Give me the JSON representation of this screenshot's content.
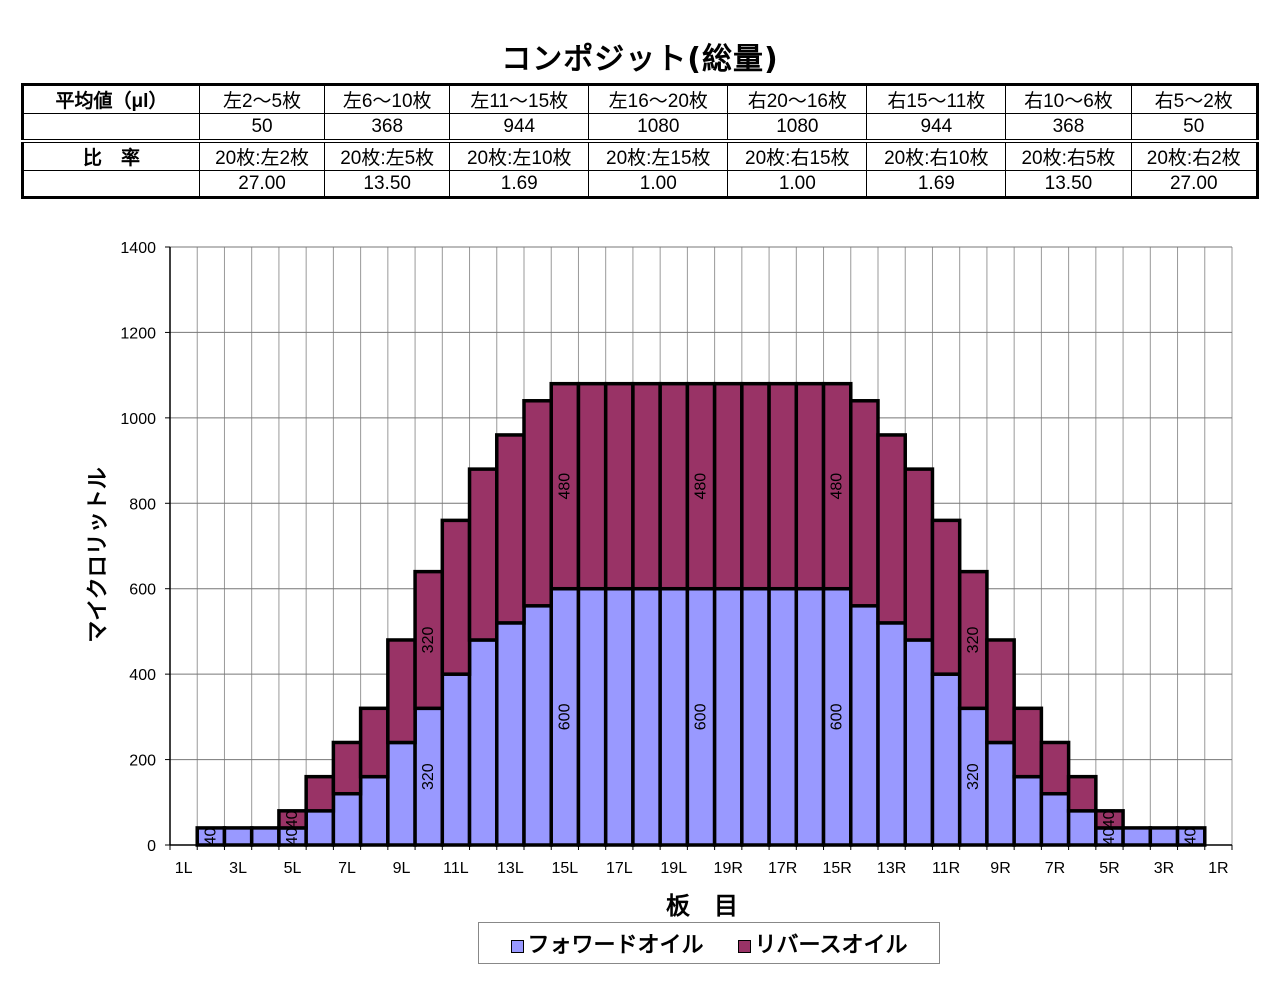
{
  "title": "コンポジット(総量)",
  "table": {
    "avg_label": "平均値（μl）",
    "ranges": [
      "左2～5枚",
      "左6～10枚",
      "左11～15枚",
      "左16～20枚",
      "右20～16枚",
      "右15～11枚",
      "右10～6枚",
      "右5～2枚"
    ],
    "averages": [
      "50",
      "368",
      "944",
      "1080",
      "1080",
      "944",
      "368",
      "50"
    ],
    "ratio_label": "比　率",
    "ratio_headers": [
      "20枚:左2枚",
      "20枚:左5枚",
      "20枚:左10枚",
      "20枚:左15枚",
      "20枚:右15枚",
      "20枚:右10枚",
      "20枚:右5枚",
      "20枚:右2枚"
    ],
    "ratios": [
      "27.00",
      "13.50",
      "1.69",
      "1.00",
      "1.00",
      "1.69",
      "13.50",
      "27.00"
    ]
  },
  "chart_data": {
    "type": "bar",
    "stacked": true,
    "xlabel": "板　目",
    "ylabel": "マイクロリットル",
    "ylim": [
      0,
      1400
    ],
    "yticks": [
      0,
      200,
      400,
      600,
      800,
      1000,
      1200,
      1400
    ],
    "grid": true,
    "legend_position": "bottom",
    "categories": [
      "1L",
      "2L",
      "3L",
      "4L",
      "5L",
      "6L",
      "7L",
      "8L",
      "9L",
      "10L",
      "11L",
      "12L",
      "13L",
      "14L",
      "15L",
      "16L",
      "17L",
      "18L",
      "19L",
      "",
      "19R",
      "18R",
      "17R",
      "16R",
      "15R",
      "14R",
      "13R",
      "12R",
      "11R",
      "10R",
      "9R",
      "8R",
      "7R",
      "6R",
      "5R",
      "4R",
      "3R",
      "2R",
      "1R"
    ],
    "shown_tick_labels": [
      "1L",
      "3L",
      "5L",
      "7L",
      "9L",
      "11L",
      "13L",
      "15L",
      "17L",
      "19L",
      "19R",
      "17R",
      "15R",
      "13R",
      "11R",
      "9R",
      "7R",
      "5R",
      "3R",
      "1R"
    ],
    "series": [
      {
        "name": "フォワードオイル",
        "color": "#9999FF",
        "values": [
          0,
          40,
          40,
          40,
          40,
          80,
          120,
          160,
          240,
          320,
          400,
          480,
          520,
          560,
          600,
          600,
          600,
          600,
          600,
          600,
          600,
          600,
          600,
          600,
          600,
          560,
          520,
          480,
          400,
          320,
          240,
          160,
          120,
          80,
          40,
          40,
          40,
          40,
          0
        ],
        "labels": {
          "1": "40",
          "4": "40",
          "9": "320",
          "14": "600",
          "19": "600",
          "24": "600",
          "29": "320",
          "34": "40",
          "37": "40"
        }
      },
      {
        "name": "リバースオイル",
        "color": "#993366",
        "values": [
          0,
          0,
          0,
          0,
          40,
          80,
          120,
          160,
          240,
          320,
          360,
          400,
          440,
          480,
          480,
          480,
          480,
          480,
          480,
          480,
          480,
          480,
          480,
          480,
          480,
          480,
          440,
          400,
          360,
          320,
          240,
          160,
          120,
          80,
          40,
          0,
          0,
          0,
          0
        ],
        "labels": {
          "4": "40",
          "9": "320",
          "14": "480",
          "19": "480",
          "24": "480",
          "29": "320",
          "34": "40"
        }
      }
    ]
  }
}
